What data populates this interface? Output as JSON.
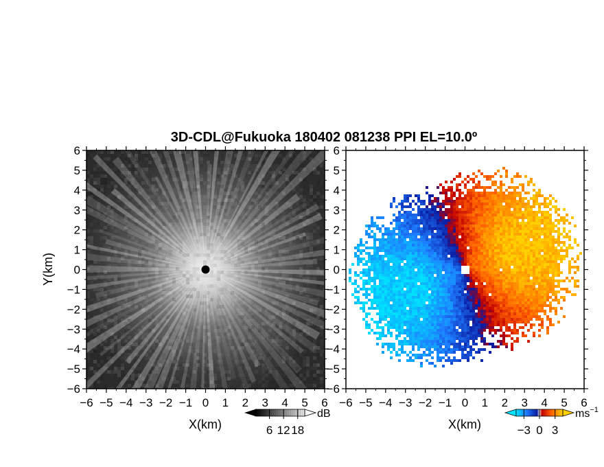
{
  "title": "3D-CDL@Fukuoka 180402 081238 PPI EL=10.0º",
  "chart_data": [
    {
      "type": "heatmap",
      "panel": "left",
      "quantity": "backscatter intensity",
      "xlabel": "X(km)",
      "ylabel": "Y(km)",
      "xlim": [
        -6,
        6
      ],
      "ylim": [
        -6,
        6
      ],
      "xticks": [
        "−6",
        "−5",
        "−4",
        "−3",
        "−2",
        "−1",
        "0",
        "1",
        "2",
        "3",
        "4",
        "5",
        "6"
      ],
      "yticks": [
        "6",
        "5",
        "4",
        "3",
        "2",
        "1",
        "0",
        "−1",
        "−2",
        "−3",
        "−4",
        "−5",
        "−6"
      ],
      "colorbar": {
        "unit": "dB",
        "ticks": [
          "6",
          "12",
          "18"
        ],
        "tick_values": [
          6,
          12,
          18
        ],
        "range": [
          0,
          21
        ],
        "colormap": "grayscale"
      },
      "pattern": "bright radial streaks centred on the lidar at (0,0), intensity decreasing with range"
    },
    {
      "type": "heatmap",
      "panel": "right",
      "quantity": "radial velocity",
      "xlabel": "X(km)",
      "xlim": [
        -6,
        6
      ],
      "ylim": [
        -6,
        6
      ],
      "xticks": [
        "−6",
        "−5",
        "−4",
        "−3",
        "−2",
        "−1",
        "0",
        "1",
        "2",
        "3",
        "4",
        "5",
        "6"
      ],
      "yticks": [
        "6",
        "5",
        "4",
        "3",
        "2",
        "1",
        "0",
        "−1",
        "−2",
        "−3",
        "−4",
        "−5",
        "−6"
      ],
      "colorbar": {
        "unit": "ms",
        "unit_exp": "−1",
        "ticks": [
          "−3",
          "0",
          "3"
        ],
        "tick_values": [
          -3,
          0,
          3
        ],
        "range": [
          -4.5,
          4.5
        ],
        "colormap": "blue-cyan-white-red-orange-yellow"
      },
      "pattern": "negative (blue) velocities toward west/south-west, positive (red to yellow) toward east/north-east"
    }
  ]
}
